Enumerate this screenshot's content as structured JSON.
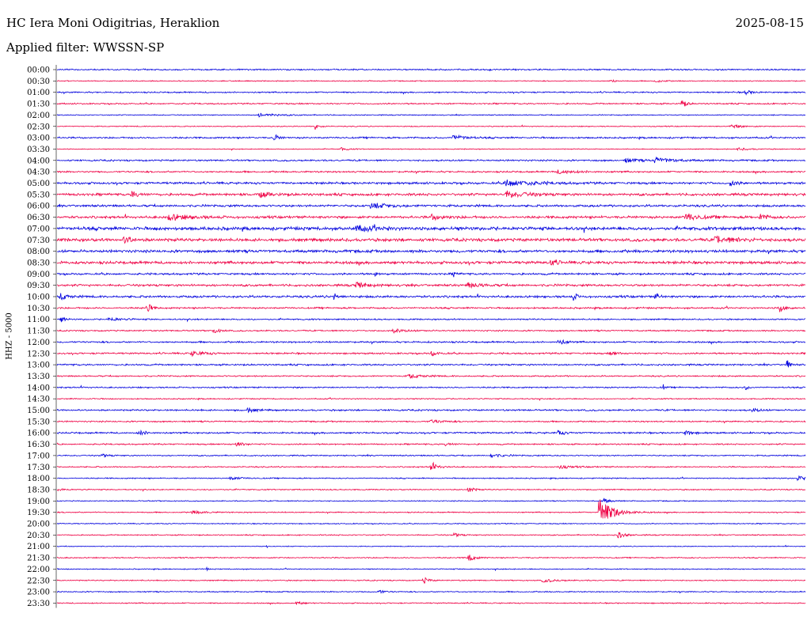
{
  "header": {
    "station": "HC Iera Moni Odigitrias, Heraklion",
    "date": "2025-08-15",
    "filter": "Applied filter: WWSSN-SP"
  },
  "chart_data": {
    "type": "line",
    "ylabel": "HHZ - 5000",
    "colors": [
      "#0000dd",
      "#ee0044"
    ],
    "rows": [
      {
        "label": "00:00",
        "noise": 1.0,
        "events": []
      },
      {
        "label": "00:30",
        "noise": 0.7,
        "events": [
          {
            "x": 0.74,
            "a": 2.5,
            "d": 0.006
          },
          {
            "x": 0.8,
            "a": 2,
            "d": 0.01
          }
        ]
      },
      {
        "label": "01:00",
        "noise": 1.0,
        "events": [
          {
            "x": 0.92,
            "a": 2.5,
            "d": 0.01
          }
        ]
      },
      {
        "label": "01:30",
        "noise": 1.0,
        "events": [
          {
            "x": 0.835,
            "a": 6,
            "d": 0.006
          }
        ]
      },
      {
        "label": "02:00",
        "noise": 0.7,
        "events": [
          {
            "x": 0.27,
            "a": 2,
            "d": 0.03
          }
        ]
      },
      {
        "label": "02:30",
        "noise": 0.7,
        "events": [
          {
            "x": 0.345,
            "a": 4,
            "d": 0.006
          },
          {
            "x": 0.9,
            "a": 2,
            "d": 0.02
          }
        ]
      },
      {
        "label": "03:00",
        "noise": 1.2,
        "events": [
          {
            "x": 0.29,
            "a": 5,
            "d": 0.006
          },
          {
            "x": 0.53,
            "a": 3,
            "d": 0.02
          }
        ]
      },
      {
        "label": "03:30",
        "noise": 0.6,
        "events": [
          {
            "x": 0.38,
            "a": 2,
            "d": 0.01
          },
          {
            "x": 0.91,
            "a": 1.5,
            "d": 0.02
          }
        ]
      },
      {
        "label": "04:00",
        "noise": 1.2,
        "events": [
          {
            "x": 0.8,
            "a": 3,
            "d": 0.03
          },
          {
            "x": 0.76,
            "a": 2.5,
            "d": 0.02
          }
        ]
      },
      {
        "label": "04:30",
        "noise": 1.2,
        "events": [
          {
            "x": 0.67,
            "a": 2,
            "d": 0.03
          }
        ]
      },
      {
        "label": "05:00",
        "noise": 1.6,
        "events": [
          {
            "x": 0.6,
            "a": 4,
            "d": 0.04
          },
          {
            "x": 0.9,
            "a": 3,
            "d": 0.01
          }
        ]
      },
      {
        "label": "05:30",
        "noise": 1.8,
        "events": [
          {
            "x": 0.1,
            "a": 4,
            "d": 0.01
          },
          {
            "x": 0.6,
            "a": 4,
            "d": 0.03
          },
          {
            "x": 0.27,
            "a": 3,
            "d": 0.02
          }
        ]
      },
      {
        "label": "06:00",
        "noise": 1.6,
        "events": [
          {
            "x": 0.42,
            "a": 3,
            "d": 0.03
          }
        ]
      },
      {
        "label": "06:30",
        "noise": 1.8,
        "events": [
          {
            "x": 0.15,
            "a": 4,
            "d": 0.03
          },
          {
            "x": 0.84,
            "a": 5,
            "d": 0.02
          },
          {
            "x": 0.5,
            "a": 3,
            "d": 0.02
          },
          {
            "x": 0.94,
            "a": 4,
            "d": 0.01
          }
        ]
      },
      {
        "label": "07:00",
        "noise": 2.4,
        "events": [
          {
            "x": 0.4,
            "a": 3,
            "d": 0.03
          }
        ]
      },
      {
        "label": "07:30",
        "noise": 2.2,
        "events": [
          {
            "x": 0.09,
            "a": 5,
            "d": 0.01
          },
          {
            "x": 0.88,
            "a": 4,
            "d": 0.03
          }
        ]
      },
      {
        "label": "08:00",
        "noise": 2.0,
        "events": []
      },
      {
        "label": "08:30",
        "noise": 2.0,
        "events": [
          {
            "x": 0.66,
            "a": 4,
            "d": 0.01
          }
        ]
      },
      {
        "label": "09:00",
        "noise": 1.4,
        "events": [
          {
            "x": 0.425,
            "a": 6,
            "d": 0.002
          },
          {
            "x": 0.53,
            "a": 3,
            "d": 0.004
          }
        ]
      },
      {
        "label": "09:30",
        "noise": 1.6,
        "events": [
          {
            "x": 0.4,
            "a": 3,
            "d": 0.02
          },
          {
            "x": 0.55,
            "a": 3,
            "d": 0.02
          }
        ]
      },
      {
        "label": "10:00",
        "noise": 1.6,
        "events": [
          {
            "x": 0.37,
            "a": 6,
            "d": 0.004
          },
          {
            "x": 0.69,
            "a": 4,
            "d": 0.006
          },
          {
            "x": 0.8,
            "a": 4,
            "d": 0.006
          },
          {
            "x": 0.005,
            "a": 4,
            "d": 0.01
          }
        ]
      },
      {
        "label": "10:30",
        "noise": 1.2,
        "events": [
          {
            "x": 0.12,
            "a": 8,
            "d": 0.006
          },
          {
            "x": 0.965,
            "a": 5,
            "d": 0.008
          }
        ]
      },
      {
        "label": "11:00",
        "noise": 1.0,
        "events": [
          {
            "x": 0.005,
            "a": 4,
            "d": 0.006
          },
          {
            "x": 0.07,
            "a": 2,
            "d": 0.02
          }
        ]
      },
      {
        "label": "11:30",
        "noise": 1.0,
        "events": [
          {
            "x": 0.21,
            "a": 3,
            "d": 0.01
          },
          {
            "x": 0.45,
            "a": 2,
            "d": 0.02
          }
        ]
      },
      {
        "label": "12:00",
        "noise": 1.2,
        "events": [
          {
            "x": 0.67,
            "a": 4,
            "d": 0.01
          }
        ]
      },
      {
        "label": "12:30",
        "noise": 1.2,
        "events": [
          {
            "x": 0.18,
            "a": 3,
            "d": 0.02
          },
          {
            "x": 0.5,
            "a": 3,
            "d": 0.01
          },
          {
            "x": 0.74,
            "a": 2.5,
            "d": 0.01
          }
        ]
      },
      {
        "label": "13:00",
        "noise": 1.2,
        "events": [
          {
            "x": 0.975,
            "a": 11,
            "d": 0.003
          }
        ]
      },
      {
        "label": "13:30",
        "noise": 1.0,
        "events": [
          {
            "x": 0.47,
            "a": 2.5,
            "d": 0.02
          }
        ]
      },
      {
        "label": "14:00",
        "noise": 1.0,
        "events": [
          {
            "x": 0.81,
            "a": 4,
            "d": 0.002
          },
          {
            "x": 0.92,
            "a": 5,
            "d": 0.003
          }
        ]
      },
      {
        "label": "14:30",
        "noise": 0.8,
        "events": []
      },
      {
        "label": "15:00",
        "noise": 1.2,
        "events": [
          {
            "x": 0.255,
            "a": 3,
            "d": 0.01
          },
          {
            "x": 0.93,
            "a": 2.5,
            "d": 0.01
          }
        ]
      },
      {
        "label": "15:30",
        "noise": 1.0,
        "events": [
          {
            "x": 0.5,
            "a": 2,
            "d": 0.02
          }
        ]
      },
      {
        "label": "16:00",
        "noise": 1.2,
        "events": [
          {
            "x": 0.11,
            "a": 3,
            "d": 0.01
          },
          {
            "x": 0.84,
            "a": 3,
            "d": 0.01
          },
          {
            "x": 0.67,
            "a": 3,
            "d": 0.01
          }
        ]
      },
      {
        "label": "16:30",
        "noise": 1.0,
        "events": [
          {
            "x": 0.24,
            "a": 3,
            "d": 0.01
          },
          {
            "x": 0.52,
            "a": 2,
            "d": 0.01
          }
        ]
      },
      {
        "label": "17:00",
        "noise": 0.9,
        "events": [
          {
            "x": 0.06,
            "a": 2,
            "d": 0.01
          },
          {
            "x": 0.58,
            "a": 2,
            "d": 0.02
          }
        ]
      },
      {
        "label": "17:30",
        "noise": 0.9,
        "events": [
          {
            "x": 0.5,
            "a": 5,
            "d": 0.01
          },
          {
            "x": 0.67,
            "a": 2,
            "d": 0.02
          }
        ]
      },
      {
        "label": "18:00",
        "noise": 0.8,
        "events": [
          {
            "x": 0.99,
            "a": 3,
            "d": 0.01
          },
          {
            "x": 0.23,
            "a": 2,
            "d": 0.02
          }
        ]
      },
      {
        "label": "18:30",
        "noise": 0.8,
        "events": [
          {
            "x": 0.0,
            "a": 2,
            "d": 0.01
          },
          {
            "x": 0.55,
            "a": 3,
            "d": 0.01
          }
        ]
      },
      {
        "label": "19:00",
        "noise": 0.7,
        "events": [
          {
            "x": 0.73,
            "a": 3,
            "d": 0.01
          }
        ]
      },
      {
        "label": "19:30",
        "noise": 0.8,
        "events": [
          {
            "x": 0.725,
            "a": 19,
            "d": 0.02
          },
          {
            "x": 0.18,
            "a": 2,
            "d": 0.02
          }
        ]
      },
      {
        "label": "20:00",
        "noise": 0.7,
        "events": []
      },
      {
        "label": "20:30",
        "noise": 0.8,
        "events": [
          {
            "x": 0.75,
            "a": 4,
            "d": 0.01
          },
          {
            "x": 0.53,
            "a": 2.5,
            "d": 0.01
          }
        ]
      },
      {
        "label": "21:00",
        "noise": 0.6,
        "events": [
          {
            "x": 0.28,
            "a": 3,
            "d": 0.001
          }
        ]
      },
      {
        "label": "21:30",
        "noise": 0.8,
        "events": [
          {
            "x": 0.55,
            "a": 6,
            "d": 0.008
          }
        ]
      },
      {
        "label": "22:00",
        "noise": 0.7,
        "events": [
          {
            "x": 0.2,
            "a": 2,
            "d": 0.002
          }
        ]
      },
      {
        "label": "22:30",
        "noise": 0.8,
        "events": [
          {
            "x": 0.49,
            "a": 4,
            "d": 0.008
          },
          {
            "x": 0.65,
            "a": 2,
            "d": 0.02
          }
        ]
      },
      {
        "label": "23:00",
        "noise": 0.8,
        "events": [
          {
            "x": 0.43,
            "a": 2,
            "d": 0.01
          }
        ]
      },
      {
        "label": "23:30",
        "noise": 0.8,
        "events": [
          {
            "x": 0.32,
            "a": 2,
            "d": 0.01
          }
        ]
      }
    ]
  }
}
